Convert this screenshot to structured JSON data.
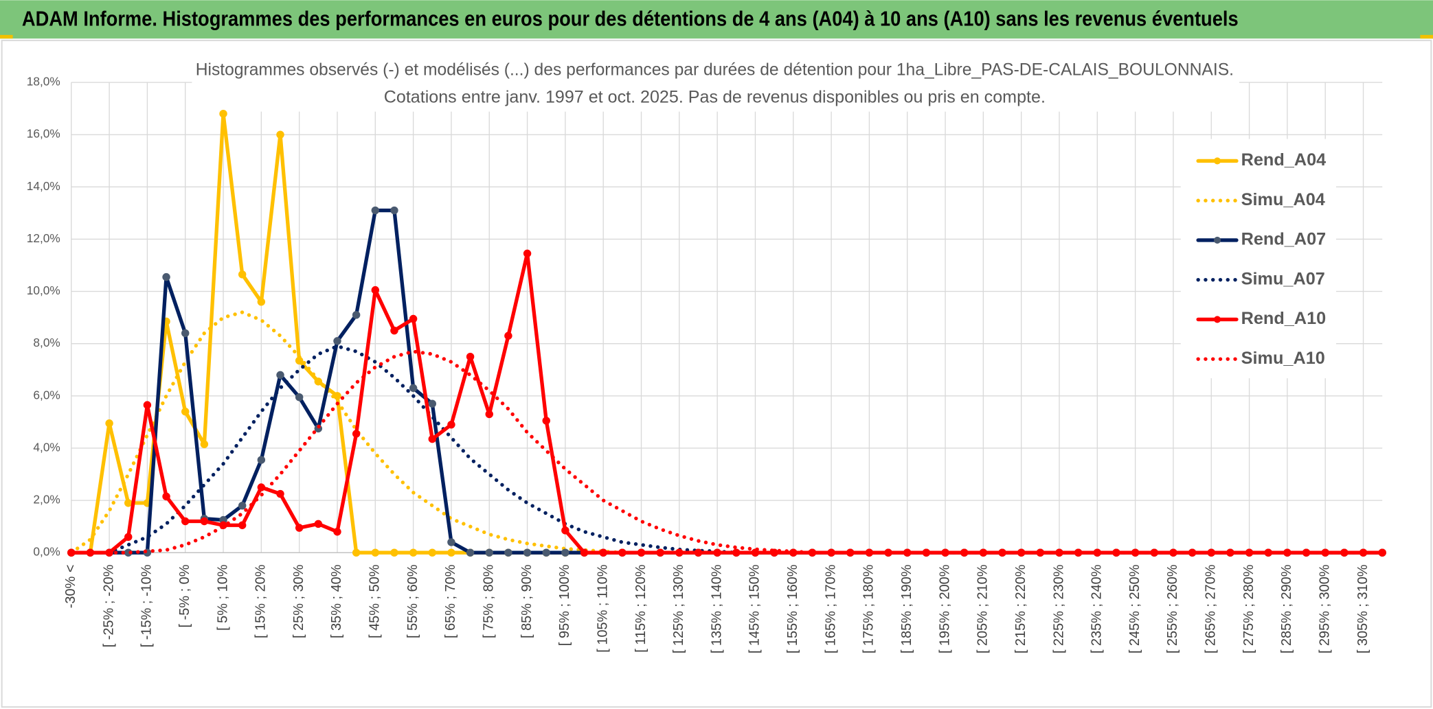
{
  "page_title": "ADAM Informe. Histogrammes des performances en euros pour des détentions de 4 ans (A04) à 10 ans (A10) sans les revenus éventuels",
  "chart_data": {
    "type": "line",
    "title": "Histogrammes observés (-) et modélisés (...) des performances par durées de détention pour 1ha_Libre_PAS-DE-CALAIS_BOULONNAIS.",
    "subtitle": "Cotations entre janv. 1997 et oct. 2025. Pas de revenus disponibles ou pris en compte.",
    "categories": [
      "-30% <",
      null,
      "[ -25% ; -20%",
      null,
      "[ -15% ; -10%",
      null,
      "[ -5% ; 0%",
      null,
      "[ 5% ; 10%",
      null,
      "[ 15% ; 20%",
      null,
      "[ 25% ; 30%",
      null,
      "[ 35% ; 40%",
      null,
      "[ 45% ; 50%",
      null,
      "[ 55% ; 60%",
      null,
      "[ 65% ; 70%",
      null,
      "[ 75% ; 80%",
      null,
      "[ 85% ; 90%",
      null,
      "[ 95% ; 100%",
      null,
      "[ 105% ; 110%",
      null,
      "[ 115% ; 120%",
      null,
      "[ 125% ; 130%",
      null,
      "[ 135% ; 140%",
      null,
      "[ 145% ; 150%",
      null,
      "[ 155% ; 160%",
      null,
      "[ 165% ; 170%",
      null,
      "[ 175% ; 180%",
      null,
      "[ 185% ; 190%",
      null,
      "[ 195% ; 200%",
      null,
      "[ 205% ; 210%",
      null,
      "[ 215% ; 220%",
      null,
      "[ 225% ; 230%",
      null,
      "[ 235% ; 240%",
      null,
      "[ 245% ; 250%",
      null,
      "[ 255% ; 260%",
      null,
      "[ 265% ; 270%",
      null,
      "[ 275% ; 280%",
      null,
      "[ 285% ; 290%",
      null,
      "[ 295% ; 300%",
      null,
      "[ 305% ; 310%",
      null
    ],
    "ylim": [
      0,
      18
    ],
    "yticks": [
      {
        "value": 0,
        "label": "0,0%"
      },
      {
        "value": 2,
        "label": "2,0%"
      },
      {
        "value": 4,
        "label": "4,0%"
      },
      {
        "value": 6,
        "label": "6,0%"
      },
      {
        "value": 8,
        "label": "8,0%"
      },
      {
        "value": 10,
        "label": "10,0%"
      },
      {
        "value": 12,
        "label": "12,0%"
      },
      {
        "value": 14,
        "label": "14,0%"
      },
      {
        "value": 16,
        "label": "16,0%"
      },
      {
        "value": 18,
        "label": "18,0%"
      }
    ],
    "grid": true,
    "legend": "right",
    "series": [
      {
        "name": "Rend_A04",
        "color": "#FFC000",
        "marker_color": "#FFC000",
        "style": "solid",
        "values": [
          0,
          0,
          4.95,
          1.9,
          1.9,
          8.85,
          5.4,
          4.15,
          16.8,
          10.65,
          9.6,
          16.0,
          7.35,
          6.55,
          6.0,
          0,
          0,
          0,
          0,
          0,
          0,
          0,
          0,
          0,
          0,
          0,
          0,
          0,
          0,
          0,
          0,
          0,
          0,
          0,
          0,
          0,
          0,
          0,
          0,
          0,
          0,
          0,
          0,
          0,
          0,
          0,
          0,
          0,
          0,
          0,
          0,
          0,
          0,
          0,
          0,
          0,
          0,
          0,
          0,
          0,
          0,
          0,
          0,
          0,
          0,
          0,
          0,
          0,
          0,
          0
        ]
      },
      {
        "name": "Simu_A04",
        "color": "#FFC000",
        "style": "dotted",
        "values": [
          0,
          0.5,
          1.6,
          3.0,
          4.5,
          6.0,
          7.3,
          8.4,
          9.0,
          9.2,
          8.9,
          8.3,
          7.5,
          6.6,
          5.8,
          4.7,
          3.8,
          3.0,
          2.3,
          1.8,
          1.3,
          1.0,
          0.7,
          0.5,
          0.35,
          0.25,
          0.15,
          0.1,
          0.05,
          0,
          0,
          0,
          0,
          0,
          0,
          0,
          0,
          0,
          0,
          0,
          0,
          0,
          0,
          0,
          0,
          0,
          0,
          0,
          0,
          0,
          0,
          0,
          0,
          0,
          0,
          0,
          0,
          0,
          0,
          0,
          0,
          0,
          0,
          0,
          0,
          0,
          0,
          0,
          0,
          0
        ]
      },
      {
        "name": "Rend_A07",
        "color": "#002060",
        "marker_color": "#4A5A70",
        "style": "solid",
        "values": [
          0,
          0,
          0,
          0,
          0,
          10.55,
          8.4,
          1.3,
          1.25,
          1.8,
          3.55,
          6.8,
          5.95,
          4.75,
          8.1,
          9.1,
          13.1,
          13.1,
          6.3,
          5.7,
          0.4,
          0,
          0,
          0,
          0,
          0,
          0,
          0,
          0,
          0,
          0,
          0,
          0,
          0,
          0,
          0,
          0,
          0,
          0,
          0,
          0,
          0,
          0,
          0,
          0,
          0,
          0,
          0,
          0,
          0,
          0,
          0,
          0,
          0,
          0,
          0,
          0,
          0,
          0,
          0,
          0,
          0,
          0,
          0,
          0,
          0,
          0,
          0,
          0,
          0
        ]
      },
      {
        "name": "Simu_A07",
        "color": "#002060",
        "style": "dotted",
        "values": [
          0,
          0,
          0,
          0.3,
          0.6,
          1.1,
          1.8,
          2.6,
          3.4,
          4.4,
          5.4,
          6.3,
          7.0,
          7.6,
          7.9,
          7.7,
          7.3,
          6.7,
          6.0,
          5.2,
          4.4,
          3.6,
          3.0,
          2.4,
          1.9,
          1.5,
          1.1,
          0.8,
          0.6,
          0.4,
          0.3,
          0.2,
          0.12,
          0.08,
          0.05,
          0,
          0,
          0,
          0,
          0,
          0,
          0,
          0,
          0,
          0,
          0,
          0,
          0,
          0,
          0,
          0,
          0,
          0,
          0,
          0,
          0,
          0,
          0,
          0,
          0,
          0,
          0,
          0,
          0,
          0,
          0,
          0,
          0,
          0,
          0
        ]
      },
      {
        "name": "Rend_A10",
        "color": "#FF0000",
        "marker_color": "#FF0000",
        "style": "solid",
        "values": [
          0,
          0,
          0,
          0.6,
          5.65,
          2.15,
          1.2,
          1.2,
          1.05,
          1.05,
          2.5,
          2.25,
          0.95,
          1.1,
          0.8,
          4.55,
          10.05,
          8.5,
          8.95,
          4.35,
          4.9,
          7.5,
          5.3,
          8.3,
          11.45,
          5.05,
          0.85,
          0,
          0,
          0,
          0,
          0,
          0,
          0,
          0,
          0,
          0,
          0,
          0,
          0,
          0,
          0,
          0,
          0,
          0,
          0,
          0,
          0,
          0,
          0,
          0,
          0,
          0,
          0,
          0,
          0,
          0,
          0,
          0,
          0,
          0,
          0,
          0,
          0,
          0,
          0,
          0,
          0,
          0,
          0
        ]
      },
      {
        "name": "Simu_A10",
        "color": "#FF0000",
        "style": "dotted",
        "values": [
          0,
          0,
          0,
          0,
          0.05,
          0.1,
          0.3,
          0.6,
          1.0,
          1.5,
          2.2,
          3.0,
          3.9,
          4.8,
          5.7,
          6.5,
          7.1,
          7.5,
          7.7,
          7.6,
          7.3,
          6.8,
          6.2,
          5.5,
          4.6,
          3.9,
          3.2,
          2.6,
          2.0,
          1.6,
          1.2,
          0.9,
          0.65,
          0.45,
          0.3,
          0.2,
          0.13,
          0.08,
          0.05,
          0,
          0,
          0,
          0,
          0,
          0,
          0,
          0,
          0,
          0,
          0,
          0,
          0,
          0,
          0,
          0,
          0,
          0,
          0,
          0,
          0,
          0,
          0,
          0,
          0,
          0,
          0,
          0,
          0,
          0,
          0
        ]
      }
    ]
  }
}
